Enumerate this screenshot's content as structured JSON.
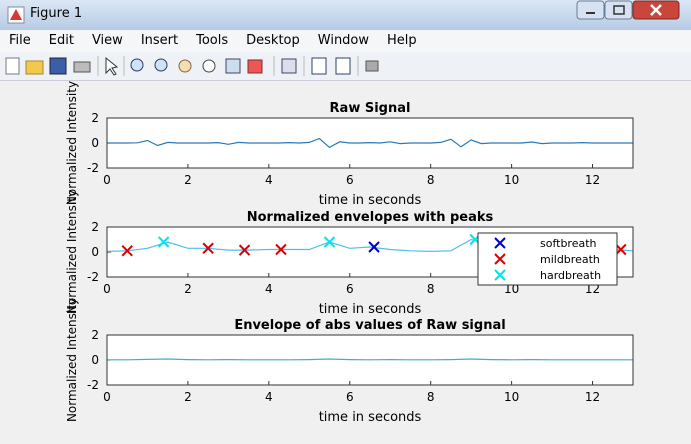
{
  "window": {
    "title": "Figure 1",
    "menu": [
      "File",
      "Edit",
      "View",
      "Insert",
      "Tools",
      "Desktop",
      "Window",
      "Help"
    ]
  },
  "chart_data": [
    {
      "type": "line",
      "title": "Raw Signal",
      "xlabel": "time in seconds",
      "ylabel": "Normalized Intensity",
      "xlim": [
        0,
        13
      ],
      "ylim": [
        -2,
        2
      ],
      "xticks": [
        0,
        2,
        4,
        6,
        8,
        10,
        12
      ],
      "yticks": [
        -2,
        0,
        2
      ],
      "line": {
        "color": "#2a7ab8",
        "x": [
          0,
          0.25,
          0.5,
          0.75,
          1,
          1.25,
          1.5,
          1.75,
          2,
          2.25,
          2.5,
          2.75,
          3,
          3.25,
          3.5,
          3.75,
          4,
          4.25,
          4.5,
          4.75,
          5,
          5.25,
          5.5,
          5.75,
          6,
          6.25,
          6.5,
          6.75,
          7,
          7.25,
          7.5,
          7.75,
          8,
          8.25,
          8.5,
          8.75,
          9,
          9.25,
          9.5,
          9.75,
          10,
          10.25,
          10.5,
          10.75,
          11,
          11.25,
          11.5,
          11.75,
          12,
          12.25,
          12.5,
          12.75,
          13
        ],
        "values": [
          0,
          0,
          0,
          0.02,
          0.2,
          -0.2,
          0.05,
          0,
          0,
          0,
          0,
          0.03,
          -0.1,
          0.05,
          0,
          0,
          0,
          0,
          0.03,
          0,
          0.05,
          0.35,
          -0.35,
          0.1,
          0,
          0,
          0.03,
          0,
          0.1,
          -0.05,
          0,
          0,
          0,
          0.05,
          0.3,
          -0.3,
          0.25,
          -0.05,
          0,
          0,
          0,
          0,
          0.08,
          -0.05,
          0,
          0,
          0,
          0.03,
          0,
          0,
          0,
          0,
          0
        ]
      }
    },
    {
      "type": "line",
      "title": "Normalized envelopes with peaks",
      "xlabel": "time in seconds",
      "ylabel": "Normalized Intensity",
      "xlim": [
        0,
        13
      ],
      "ylim": [
        -2,
        2
      ],
      "xticks": [
        0,
        2,
        4,
        6,
        8,
        10,
        12
      ],
      "yticks": [
        -2,
        0,
        2
      ],
      "legend": "northeast",
      "line": {
        "color": "#4dbeee",
        "x": [
          0,
          0.5,
          1,
          1.5,
          2,
          2.5,
          3,
          3.5,
          4,
          4.5,
          5,
          5.5,
          6,
          6.5,
          7,
          7.5,
          8,
          8.5,
          9,
          9.5,
          10,
          10.5,
          11,
          11.5,
          12,
          12.5,
          13
        ],
        "values": [
          0.05,
          0.1,
          0.3,
          0.8,
          0.3,
          0.3,
          0.15,
          0.15,
          0.2,
          0.2,
          0.2,
          0.8,
          0.3,
          0.4,
          0.2,
          0.1,
          0.05,
          0.1,
          1.0,
          0.6,
          0.2,
          0.2,
          0.15,
          0.1,
          0.1,
          0.2,
          0.1
        ]
      },
      "series": [
        {
          "name": "softbreath",
          "color": "#0000cc",
          "x": [
            6.6
          ],
          "values": [
            0.4
          ]
        },
        {
          "name": "mildbreath",
          "color": "#dd0000",
          "x": [
            0.5,
            2.5,
            3.4,
            4.3,
            12.7
          ],
          "values": [
            0.1,
            0.3,
            0.15,
            0.2,
            0.2
          ]
        },
        {
          "name": "hardbreath",
          "color": "#00e5ee",
          "x": [
            1.4,
            5.5,
            9.1
          ],
          "values": [
            0.8,
            0.8,
            1.0
          ]
        }
      ]
    },
    {
      "type": "line",
      "title": "Envelope of abs values of Raw signal",
      "xlabel": "time in seconds",
      "ylabel": "Normalized Intensity",
      "xlim": [
        0,
        13
      ],
      "ylim": [
        -2,
        2
      ],
      "xticks": [
        0,
        2,
        4,
        6,
        8,
        10,
        12
      ],
      "yticks": [
        -2,
        0,
        2
      ],
      "line": {
        "color": "#3fb0c8",
        "x": [
          0,
          0.5,
          1,
          1.5,
          2,
          2.5,
          3,
          3.5,
          4,
          4.5,
          5,
          5.5,
          6,
          6.5,
          7,
          7.5,
          8,
          8.5,
          9,
          9.5,
          10,
          10.5,
          11,
          11.5,
          12,
          12.5,
          13
        ],
        "values": [
          0.02,
          0.02,
          0.05,
          0.08,
          0.03,
          0.02,
          0.03,
          0.02,
          0.02,
          0.02,
          0.03,
          0.08,
          0.03,
          0.02,
          0.03,
          0.02,
          0.02,
          0.03,
          0.08,
          0.03,
          0.02,
          0.03,
          0.02,
          0.02,
          0.02,
          0.02,
          0.02
        ]
      }
    }
  ]
}
